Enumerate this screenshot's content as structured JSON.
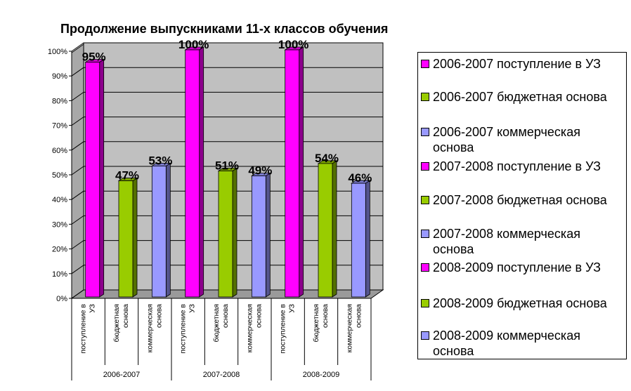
{
  "chart_data": {
    "type": "bar",
    "title": "Продолжение выпускниками 11-х классов обучения",
    "ylim": [
      0,
      100
    ],
    "yticks": [
      "0%",
      "10%",
      "20%",
      "30%",
      "40%",
      "50%",
      "60%",
      "70%",
      "80%",
      "90%",
      "100%"
    ],
    "groups": [
      {
        "label": "2006-2007",
        "categories": [
          "поступление в УЗ",
          "бюджетная основа",
          "коммерческая основа"
        ]
      },
      {
        "label": "2007-2008",
        "categories": [
          "поступление в УЗ",
          "бюджетная основа",
          "коммерческая основа"
        ]
      },
      {
        "label": "2008-2009",
        "categories": [
          "поступление в УЗ",
          "бюджетная основа",
          "коммерческая основа"
        ]
      }
    ],
    "xcat_lines": [
      [
        "поступление в",
        "УЗ"
      ],
      [
        "бюджетная",
        "основа"
      ],
      [
        "коммерческая",
        "основа"
      ],
      [
        "поступление в",
        "УЗ"
      ],
      [
        "бюджетная",
        "основа"
      ],
      [
        "коммерческая",
        "основа"
      ],
      [
        "поступление в",
        "УЗ"
      ],
      [
        "бюджетная",
        "основа"
      ],
      [
        "коммерческая",
        "основа"
      ]
    ],
    "series": [
      {
        "name": "2006-2007 поступление в УЗ",
        "value": 95,
        "label": "95%",
        "color": "#ff00ff"
      },
      {
        "name": "2006-2007 бюджетная основа",
        "value": 47,
        "label": "47%",
        "color": "#99cc00"
      },
      {
        "name": "2006-2007 коммерческая основа",
        "value": 53,
        "label": "53%",
        "color": "#9999ff"
      },
      {
        "name": "2007-2008 поступление в УЗ",
        "value": 100,
        "label": "100%",
        "color": "#ff00ff"
      },
      {
        "name": "2007-2008 бюджетная основа",
        "value": 51,
        "label": "51%",
        "color": "#99cc00"
      },
      {
        "name": "2007-2008 коммерческая основа",
        "value": 49,
        "label": "49%",
        "color": "#9999ff"
      },
      {
        "name": "2008-2009 поступление в УЗ",
        "value": 100,
        "label": "100%",
        "color": "#ff00ff"
      },
      {
        "name": "2008-2009 бюджетная основа",
        "value": 54,
        "label": "54%",
        "color": "#99cc00"
      },
      {
        "name": "2008-2009 коммерческая основа",
        "value": 46,
        "label": "46%",
        "color": "#9999ff"
      }
    ],
    "legend_position": "right",
    "grid": true,
    "colors": {
      "wall": "#c0c0c0",
      "floor": "#9a9a9a",
      "grid": "#000000"
    }
  }
}
